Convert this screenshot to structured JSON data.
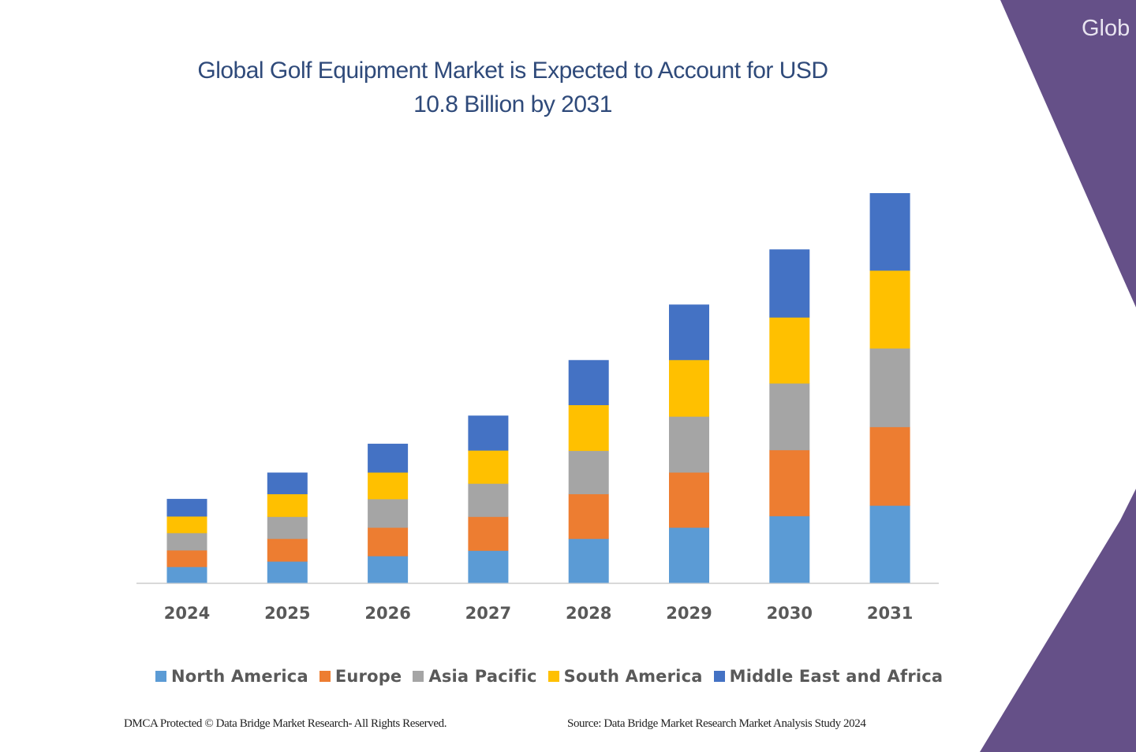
{
  "banner": {
    "text": "Glob",
    "color": "#655088"
  },
  "chart_data": {
    "type": "bar",
    "stacked": true,
    "title": "Global Golf Equipment Market is Expected to Account for USD 10.8 Billion by 2031",
    "title_lines": [
      "Global Golf Equipment Market is Expected to Account for USD",
      "10.8 Billion by 2031"
    ],
    "xlabel": "",
    "ylabel": "",
    "units": "USD Billion (estimated)",
    "ylim": [
      0,
      11
    ],
    "grid": false,
    "y_axis_visible": false,
    "legend_position": "bottom",
    "categories": [
      "2024",
      "2025",
      "2026",
      "2027",
      "2028",
      "2029",
      "2030",
      "2031"
    ],
    "series": [
      {
        "name": "North America",
        "color": "#5b9bd5",
        "values": [
          0.44,
          0.59,
          0.74,
          0.89,
          1.22,
          1.53,
          1.85,
          2.14
        ]
      },
      {
        "name": "Europe",
        "color": "#ed7d31",
        "values": [
          0.46,
          0.63,
          0.79,
          0.94,
          1.24,
          1.53,
          1.83,
          2.18
        ]
      },
      {
        "name": "Asia Pacific",
        "color": "#a5a5a5",
        "values": [
          0.48,
          0.61,
          0.79,
          0.92,
          1.2,
          1.55,
          1.85,
          2.18
        ]
      },
      {
        "name": "South America",
        "color": "#ffc000",
        "values": [
          0.46,
          0.63,
          0.74,
          0.92,
          1.27,
          1.57,
          1.83,
          2.16
        ]
      },
      {
        "name": "Middle East and Africa",
        "color": "#4472c4",
        "values": [
          0.48,
          0.59,
          0.79,
          0.96,
          1.24,
          1.53,
          1.88,
          2.14
        ]
      }
    ]
  },
  "footer": {
    "left": "DMCA Protected © Data Bridge Market Research-  All Rights Reserved.",
    "right": "Source:  Data Bridge Market Research  Market Analysis Study 2024"
  }
}
